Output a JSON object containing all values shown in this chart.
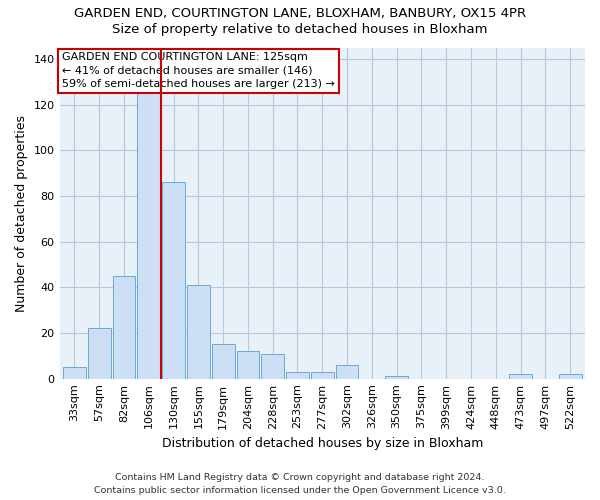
{
  "title1": "GARDEN END, COURTINGTON LANE, BLOXHAM, BANBURY, OX15 4PR",
  "title2": "Size of property relative to detached houses in Bloxham",
  "xlabel": "Distribution of detached houses by size in Bloxham",
  "ylabel": "Number of detached properties",
  "footer1": "Contains HM Land Registry data © Crown copyright and database right 2024.",
  "footer2": "Contains public sector information licensed under the Open Government Licence v3.0.",
  "annotation_line1": "GARDEN END COURTINGTON LANE: 125sqm",
  "annotation_line2": "← 41% of detached houses are smaller (146)",
  "annotation_line3": "59% of semi-detached houses are larger (213) →",
  "bar_values": [
    5,
    22,
    45,
    130,
    86,
    41,
    15,
    12,
    11,
    3,
    3,
    6,
    0,
    1,
    0,
    0,
    0,
    0,
    2,
    0,
    2
  ],
  "bin_labels": [
    "33sqm",
    "57sqm",
    "82sqm",
    "106sqm",
    "130sqm",
    "155sqm",
    "179sqm",
    "204sqm",
    "228sqm",
    "253sqm",
    "277sqm",
    "302sqm",
    "326sqm",
    "350sqm",
    "375sqm",
    "399sqm",
    "424sqm",
    "448sqm",
    "473sqm",
    "497sqm",
    "522sqm"
  ],
  "bar_color": "#ccdff5",
  "bar_edge_color": "#6aaad4",
  "ref_line_color": "#cc0000",
  "ylim": [
    0,
    145
  ],
  "yticks": [
    0,
    20,
    40,
    60,
    80,
    100,
    120,
    140
  ],
  "grid_color": "#b8c8dc",
  "bg_color": "#e8f0f8",
  "annotation_box_color": "white",
  "annotation_box_edge": "#cc0000",
  "title1_fontsize": 9.5,
  "title2_fontsize": 9.5,
  "ylabel_fontsize": 9,
  "xlabel_fontsize": 9,
  "tick_fontsize": 8,
  "footer_fontsize": 6.8,
  "ann_fontsize": 8.0
}
